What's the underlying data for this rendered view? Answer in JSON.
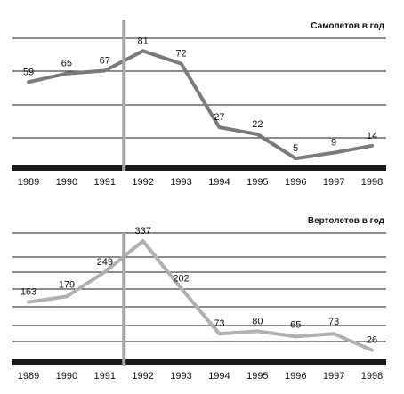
{
  "chart_data": [
    {
      "type": "line",
      "title": "Самолетов в год",
      "xlabel": "",
      "ylabel": "",
      "x": [
        "1989",
        "1990",
        "1991",
        "1992",
        "1993",
        "1994",
        "1995",
        "1996",
        "1997",
        "1998"
      ],
      "values": [
        59,
        65,
        67,
        81,
        72,
        27,
        22,
        5,
        9,
        14
      ],
      "ylim": [
        0,
        90
      ],
      "grid": true,
      "line_color": "#7a7a7a",
      "marker_year": "1991.5"
    },
    {
      "type": "line",
      "title": "Вертолетов в год",
      "xlabel": "",
      "ylabel": "",
      "x": [
        "1989",
        "1990",
        "1991",
        "1992",
        "1993",
        "1994",
        "1995",
        "1996",
        "1997",
        "1998"
      ],
      "values": [
        163,
        179,
        249,
        337,
        202,
        73,
        80,
        65,
        73,
        26
      ],
      "ylim": [
        0,
        360
      ],
      "grid": true,
      "line_color": "#b0b0b0",
      "marker_year": "1991.5"
    }
  ],
  "colors": {
    "axis": "#1a1a1a",
    "grid": "#1a1a1a",
    "separator": "#a6a6a6"
  }
}
